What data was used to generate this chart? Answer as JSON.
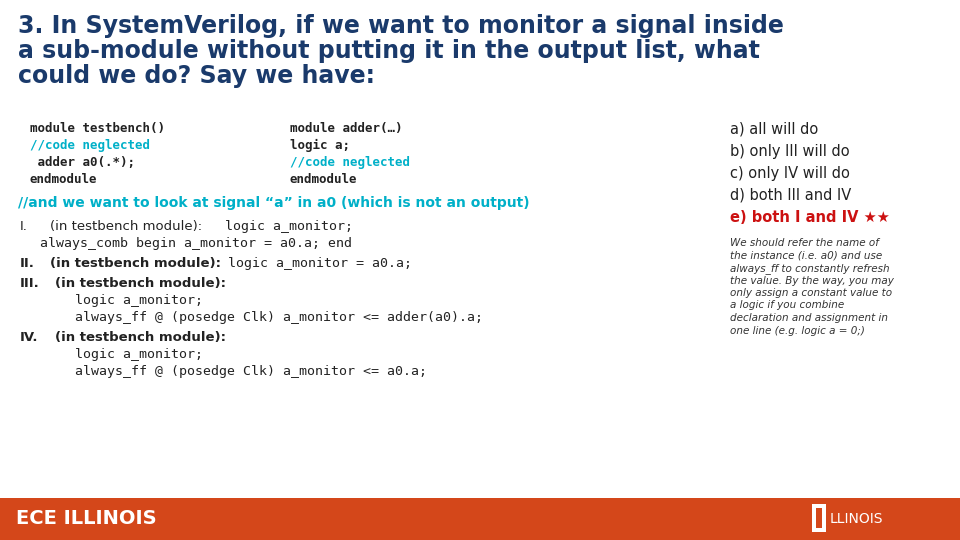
{
  "bg_color": "#ffffff",
  "footer_color": "#d4471a",
  "title_text": "3. In SystemVerilog, if we want to monitor a signal inside\na sub-module without putting it in the output list, what\ncould we do? Say we have:",
  "title_color": "#1a3a6b",
  "title_fontsize": 17,
  "code_color_black": "#222222",
  "code_color_cyan": "#00b0c8",
  "code1_lines": [
    [
      "black",
      "module testbench()"
    ],
    [
      "cyan",
      "//code neglected"
    ],
    [
      "black",
      " adder a0(.*);"
    ],
    [
      "black",
      "endmodule"
    ]
  ],
  "code2_lines": [
    [
      "black",
      "module adder(…)"
    ],
    [
      "black",
      "logic a;"
    ],
    [
      "cyan",
      "//code neglected"
    ],
    [
      "black",
      "endmodule"
    ]
  ],
  "comment_line": "//and we want to look at signal “a” in a0 (which is not an output)",
  "comment_color": "#00b0c8",
  "options": [
    [
      "black",
      "a) all will do"
    ],
    [
      "black",
      "b) only III will do"
    ],
    [
      "black",
      "c) only IV will do"
    ],
    [
      "black",
      "d) both III and IV"
    ],
    [
      "red",
      "e) both I and IV ★★"
    ]
  ],
  "explanation": "We should refer the name of\nthe instance (i.e. a0) and use\nalways_ff to constantly refresh\nthe value. By the way, you may\nonly assign a constant value to\na logic if you combine\ndeclaration and assignment in\none line (e.g. logic a = 0;)",
  "footer_text_left": "ECE ILLINOIS",
  "footer_font_color": "#ffffff"
}
